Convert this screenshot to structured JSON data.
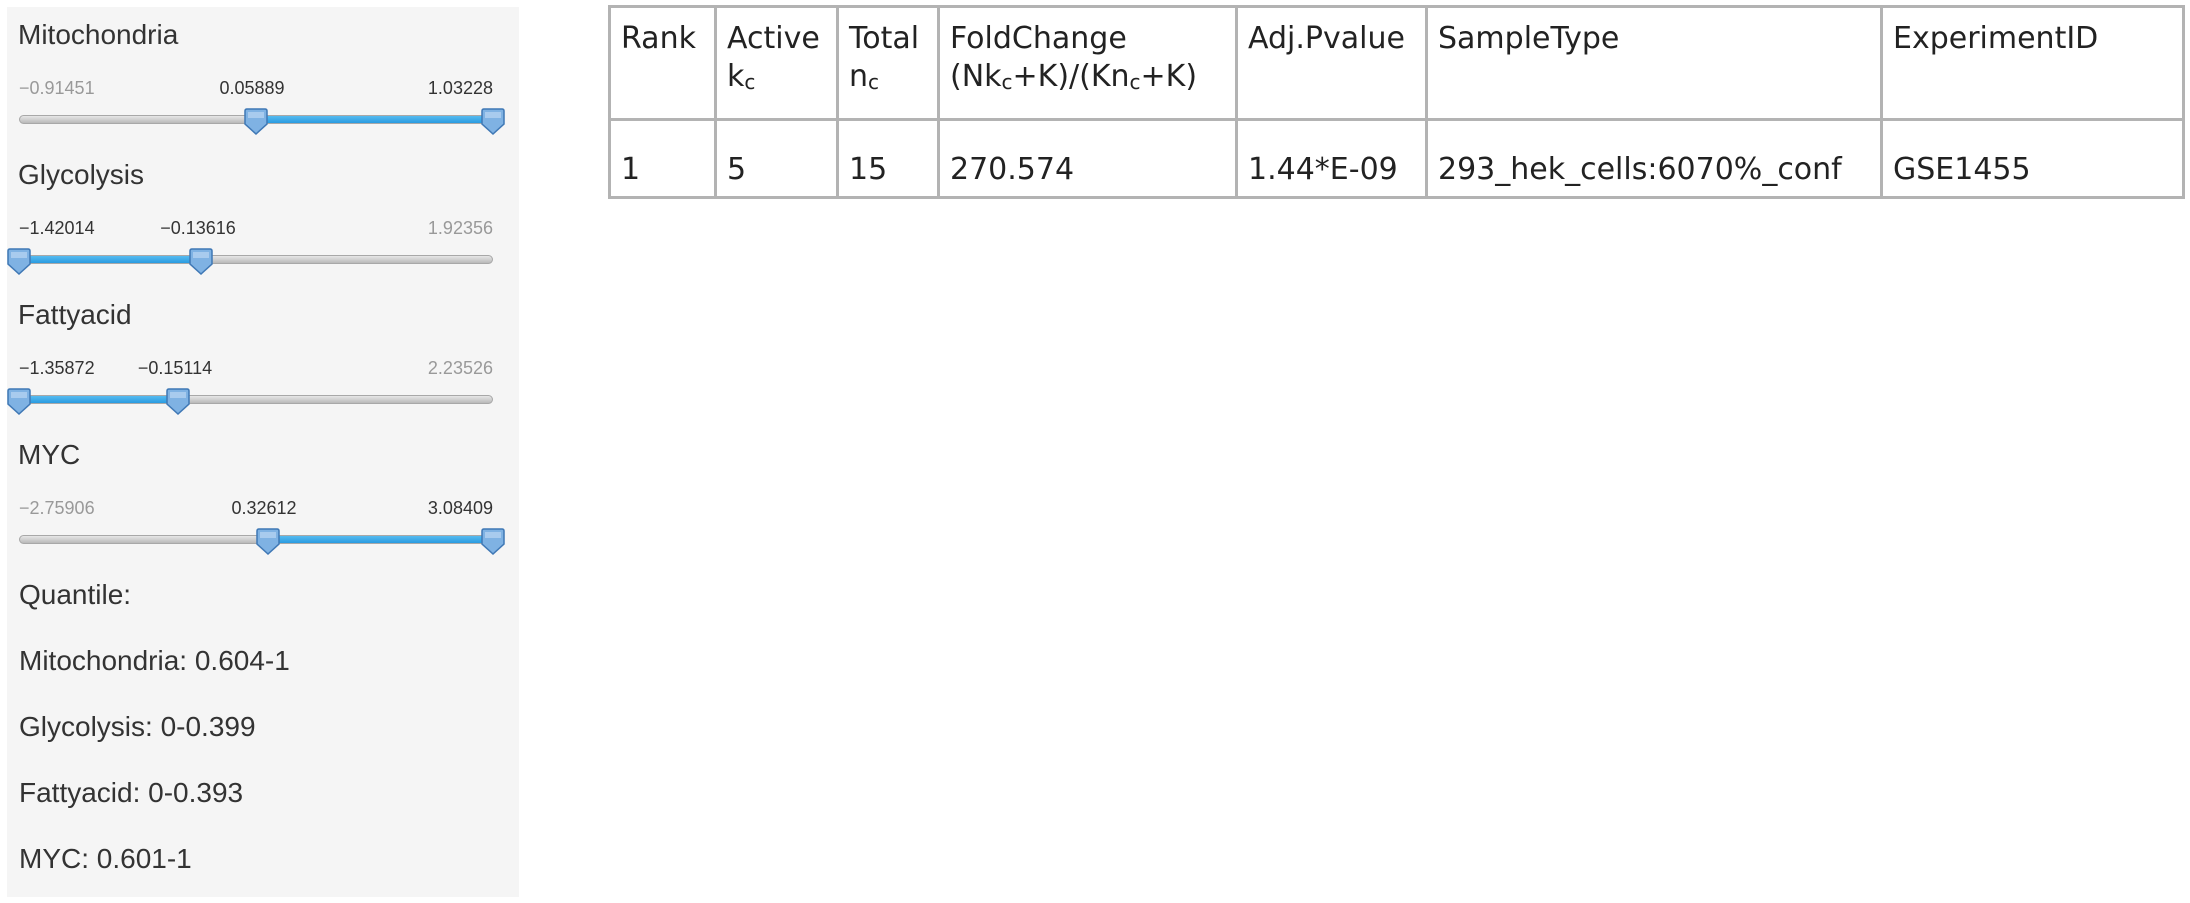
{
  "sliders": [
    {
      "label": "Mitochondria",
      "min": "−0.91451",
      "low": "0.05889",
      "high": "1.03228",
      "low_frac": 0.5,
      "high_frac": 1.0
    },
    {
      "label": "Glycolysis",
      "min": "−1.42014",
      "low": "−0.13616",
      "high": "1.92356",
      "low_frac": 0.0,
      "high_frac": 0.385
    },
    {
      "label": "Fattyacid",
      "min": "−1.35872",
      "low": "−0.15114",
      "high": "2.23526",
      "low_frac": 0.0,
      "high_frac": 0.335
    },
    {
      "label": "MYC",
      "min": "−2.75906",
      "low": "0.32612",
      "high": "3.08409",
      "low_frac": 0.525,
      "high_frac": 1.0
    }
  ],
  "quantile": {
    "heading": "Quantile:",
    "lines": [
      "Mitochondria: 0.604-1",
      "Glycolysis: 0-0.399",
      "Fattyacid: 0-0.393",
      "MYC: 0.601-1"
    ]
  },
  "colors": {
    "slider_fill": "#2a9be0",
    "handle": "#6aa6de",
    "table_border": "#b3b3b3"
  },
  "table": {
    "headers": {
      "rank": "Rank",
      "active_line1": "Active",
      "active_line2_k": "k",
      "active_line2_sub": "c",
      "total_line1": "Total",
      "total_line2_n": "n",
      "total_line2_sub": "c",
      "fold_line1": "FoldChange",
      "fold_line2_a": "(Nk",
      "fold_line2_sub1": "c",
      "fold_line2_b": "+K)/(Kn",
      "fold_line2_sub2": "c",
      "fold_line2_c": "+K)",
      "pvalue": "Adj.Pvalue",
      "sampletype": "SampleType",
      "experimentid": "ExperimentID"
    },
    "rows": [
      {
        "rank": "1",
        "active": "5",
        "total": "15",
        "fold": "270.574",
        "pvalue": "1.44*E-09",
        "sampletype": "293_hek_cells:6070%_conf",
        "experimentid": "GSE1455"
      }
    ]
  }
}
